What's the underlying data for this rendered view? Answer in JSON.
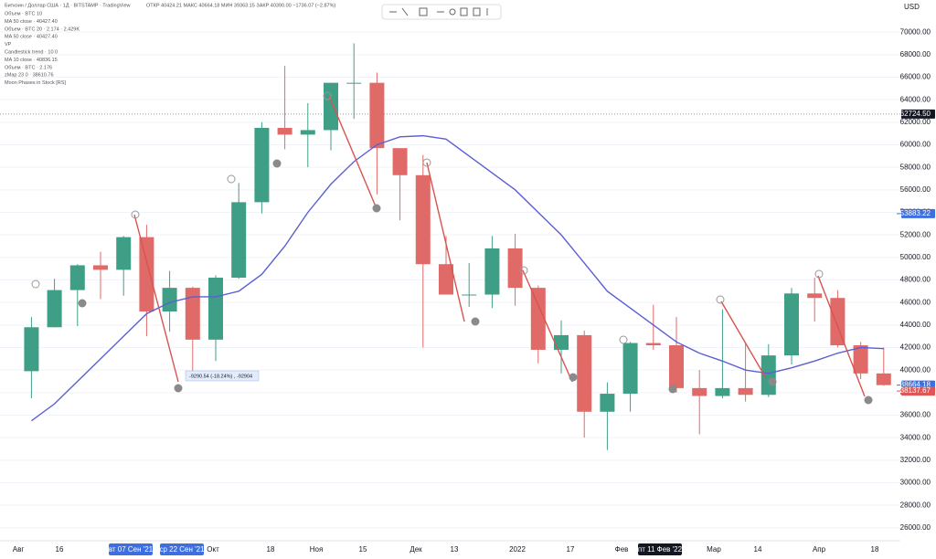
{
  "chart_data": {
    "type": "candlestick",
    "header": "Биткоин / Доллар США · 1Д · BITSTAMP · TradingView",
    "ohlc_line": "ОТКР 40424.21 МАКС 40664.18 МИН 39363.15 ЗАКР 40390.00 −1736.07 (−2.87%)",
    "legend": [
      "Объем · BTC 10",
      "MA 50 close · 40427.40",
      "Объем · BTC 20 · 2.174 · 2.429K",
      "MA 50 close · 40427.40",
      "VP",
      "Candlestick trend · 10 0",
      "MA 10 close · 40836.15",
      "Объем · BTC · 2.176",
      "zMap 23 0 · 38610.76",
      "Moon Phases in Stock [RS]"
    ],
    "currency": "USD",
    "measure_label": "-9290.54 (-18.24%) , -92904",
    "open": [
      39900,
      43800,
      47100,
      49300,
      48900,
      51800,
      45200,
      47300,
      42700,
      48200,
      54900,
      61500,
      60900,
      61300,
      65500,
      65500,
      59700,
      57300,
      49400,
      46700,
      46700,
      50800,
      47300,
      41800,
      43100,
      36300,
      37900,
      42400,
      42200,
      38400,
      37700,
      38400,
      37800,
      41300,
      46800,
      46400,
      42200,
      39700
    ],
    "high": [
      44700,
      48100,
      49400,
      50500,
      51900,
      52900,
      48800,
      47400,
      48400,
      56600,
      62000,
      67000,
      63700,
      65500,
      69000,
      66400,
      59700,
      59100,
      51900,
      49500,
      51900,
      52100,
      47500,
      44400,
      43500,
      38900,
      42500,
      45800,
      44700,
      40000,
      45400,
      42500,
      42300,
      47300,
      48200,
      47100,
      42500,
      42000
    ],
    "low": [
      37500,
      43800,
      43900,
      46300,
      46600,
      43000,
      43400,
      39600,
      40800,
      48100,
      53900,
      59600,
      58000,
      59500,
      62300,
      55600,
      53300,
      42000,
      46800,
      45600,
      45500,
      45700,
      40600,
      39700,
      34000,
      32900,
      36300,
      41800,
      38000,
      34300,
      37500,
      37200,
      37600,
      40500,
      44300,
      42000,
      39200,
      38600
    ],
    "close": [
      43800,
      47100,
      49300,
      48900,
      51800,
      45200,
      47300,
      42700,
      48200,
      54900,
      61500,
      60900,
      61300,
      65500,
      65500,
      59700,
      57300,
      49400,
      46700,
      46700,
      50800,
      47300,
      41800,
      43100,
      36300,
      37900,
      42400,
      42200,
      38400,
      37700,
      38400,
      37800,
      41300,
      46800,
      46400,
      42200,
      39700,
      38664.18
    ],
    "categories": [
      null,
      null,
      null,
      null,
      null,
      null,
      null,
      null,
      null,
      null,
      null,
      null,
      null,
      null,
      null,
      null,
      null,
      null,
      null,
      null,
      null,
      null,
      null,
      null,
      null,
      null,
      null,
      null,
      null,
      null,
      null,
      null,
      null,
      null,
      null,
      null,
      null,
      null
    ],
    "up_color": "#3f9f86",
    "down_color": "#e06a68",
    "overlays": [
      {
        "color": "#5b5fd3",
        "values": [
          35500,
          37000,
          39000,
          41000,
          43000,
          45000,
          46000,
          46500,
          46500,
          47000,
          48500,
          51000,
          54000,
          56500,
          58500,
          60000,
          60700,
          60800,
          60500,
          59000,
          57500,
          56000,
          54000,
          52000,
          49500,
          47000,
          45500,
          44000,
          42500,
          41500,
          40800,
          40000,
          39700,
          40200,
          40800,
          41500,
          42000,
          41900
        ]
      }
    ],
    "ylim": [
      24850,
      72850
    ],
    "yticks": [
      {
        "value": 26000,
        "label": "26000.00"
      },
      {
        "value": 28000,
        "label": "28000.00"
      },
      {
        "value": 30000,
        "label": "30000.00"
      },
      {
        "value": 32000,
        "label": "32000.00"
      },
      {
        "value": 34000,
        "label": "34000.00"
      },
      {
        "value": 36000,
        "label": "36000.00"
      },
      {
        "value": 38000,
        "label": "38000.00"
      },
      {
        "value": 40000,
        "label": "40000.00"
      },
      {
        "value": 42000,
        "label": "42000.00"
      },
      {
        "value": 44000,
        "label": "44000.00"
      },
      {
        "value": 46000,
        "label": "46000.00"
      },
      {
        "value": 48000,
        "label": "48000.00"
      },
      {
        "value": 50000,
        "label": "50000.00"
      },
      {
        "value": 52000,
        "label": "52000.00"
      },
      {
        "value": 54000,
        "label": "54000.00"
      },
      {
        "value": 56000,
        "label": "56000.00"
      },
      {
        "value": 58000,
        "label": "58000.00"
      },
      {
        "value": 60000,
        "label": "60000.00"
      },
      {
        "value": 62000,
        "label": "62000.00"
      },
      {
        "value": 64000,
        "label": "64000.00"
      },
      {
        "value": 66000,
        "label": "66000.00"
      },
      {
        "value": 68000,
        "label": "68000.00"
      },
      {
        "value": 70000,
        "label": "70000.00"
      }
    ],
    "grid": true,
    "badges": [
      {
        "value": 62724.5,
        "label": "62724.50",
        "color": "#131722"
      },
      {
        "value": 53883.22,
        "label": "53883.22",
        "color": "#3d6fe0"
      },
      {
        "value": 38664.18,
        "label": "38664.18",
        "color": "#3d6fe0"
      },
      {
        "value": 38137.67,
        "label": "38137.67",
        "color": "#e05555"
      }
    ],
    "time_labels": [
      {
        "label": "Авг"
      },
      {
        "label": "16"
      },
      {
        "label": "вт 07 Сен '21",
        "highlight": "#3d6fe0"
      },
      {
        "label": "ср 22 Сен '21",
        "highlight": "#3d6fe0"
      },
      {
        "label": "Окт"
      },
      {
        "label": "18"
      },
      {
        "label": "Ноя"
      },
      {
        "label": "15"
      },
      {
        "label": "Дек"
      },
      {
        "label": "13"
      },
      {
        "label": "2022"
      },
      {
        "label": "17"
      },
      {
        "label": "Фев"
      },
      {
        "label": "пт 11 Фев '22",
        "highlight": "#131722"
      },
      {
        "label": "Мар"
      },
      {
        "label": "14"
      },
      {
        "label": "Апр"
      },
      {
        "label": "18"
      }
    ]
  }
}
